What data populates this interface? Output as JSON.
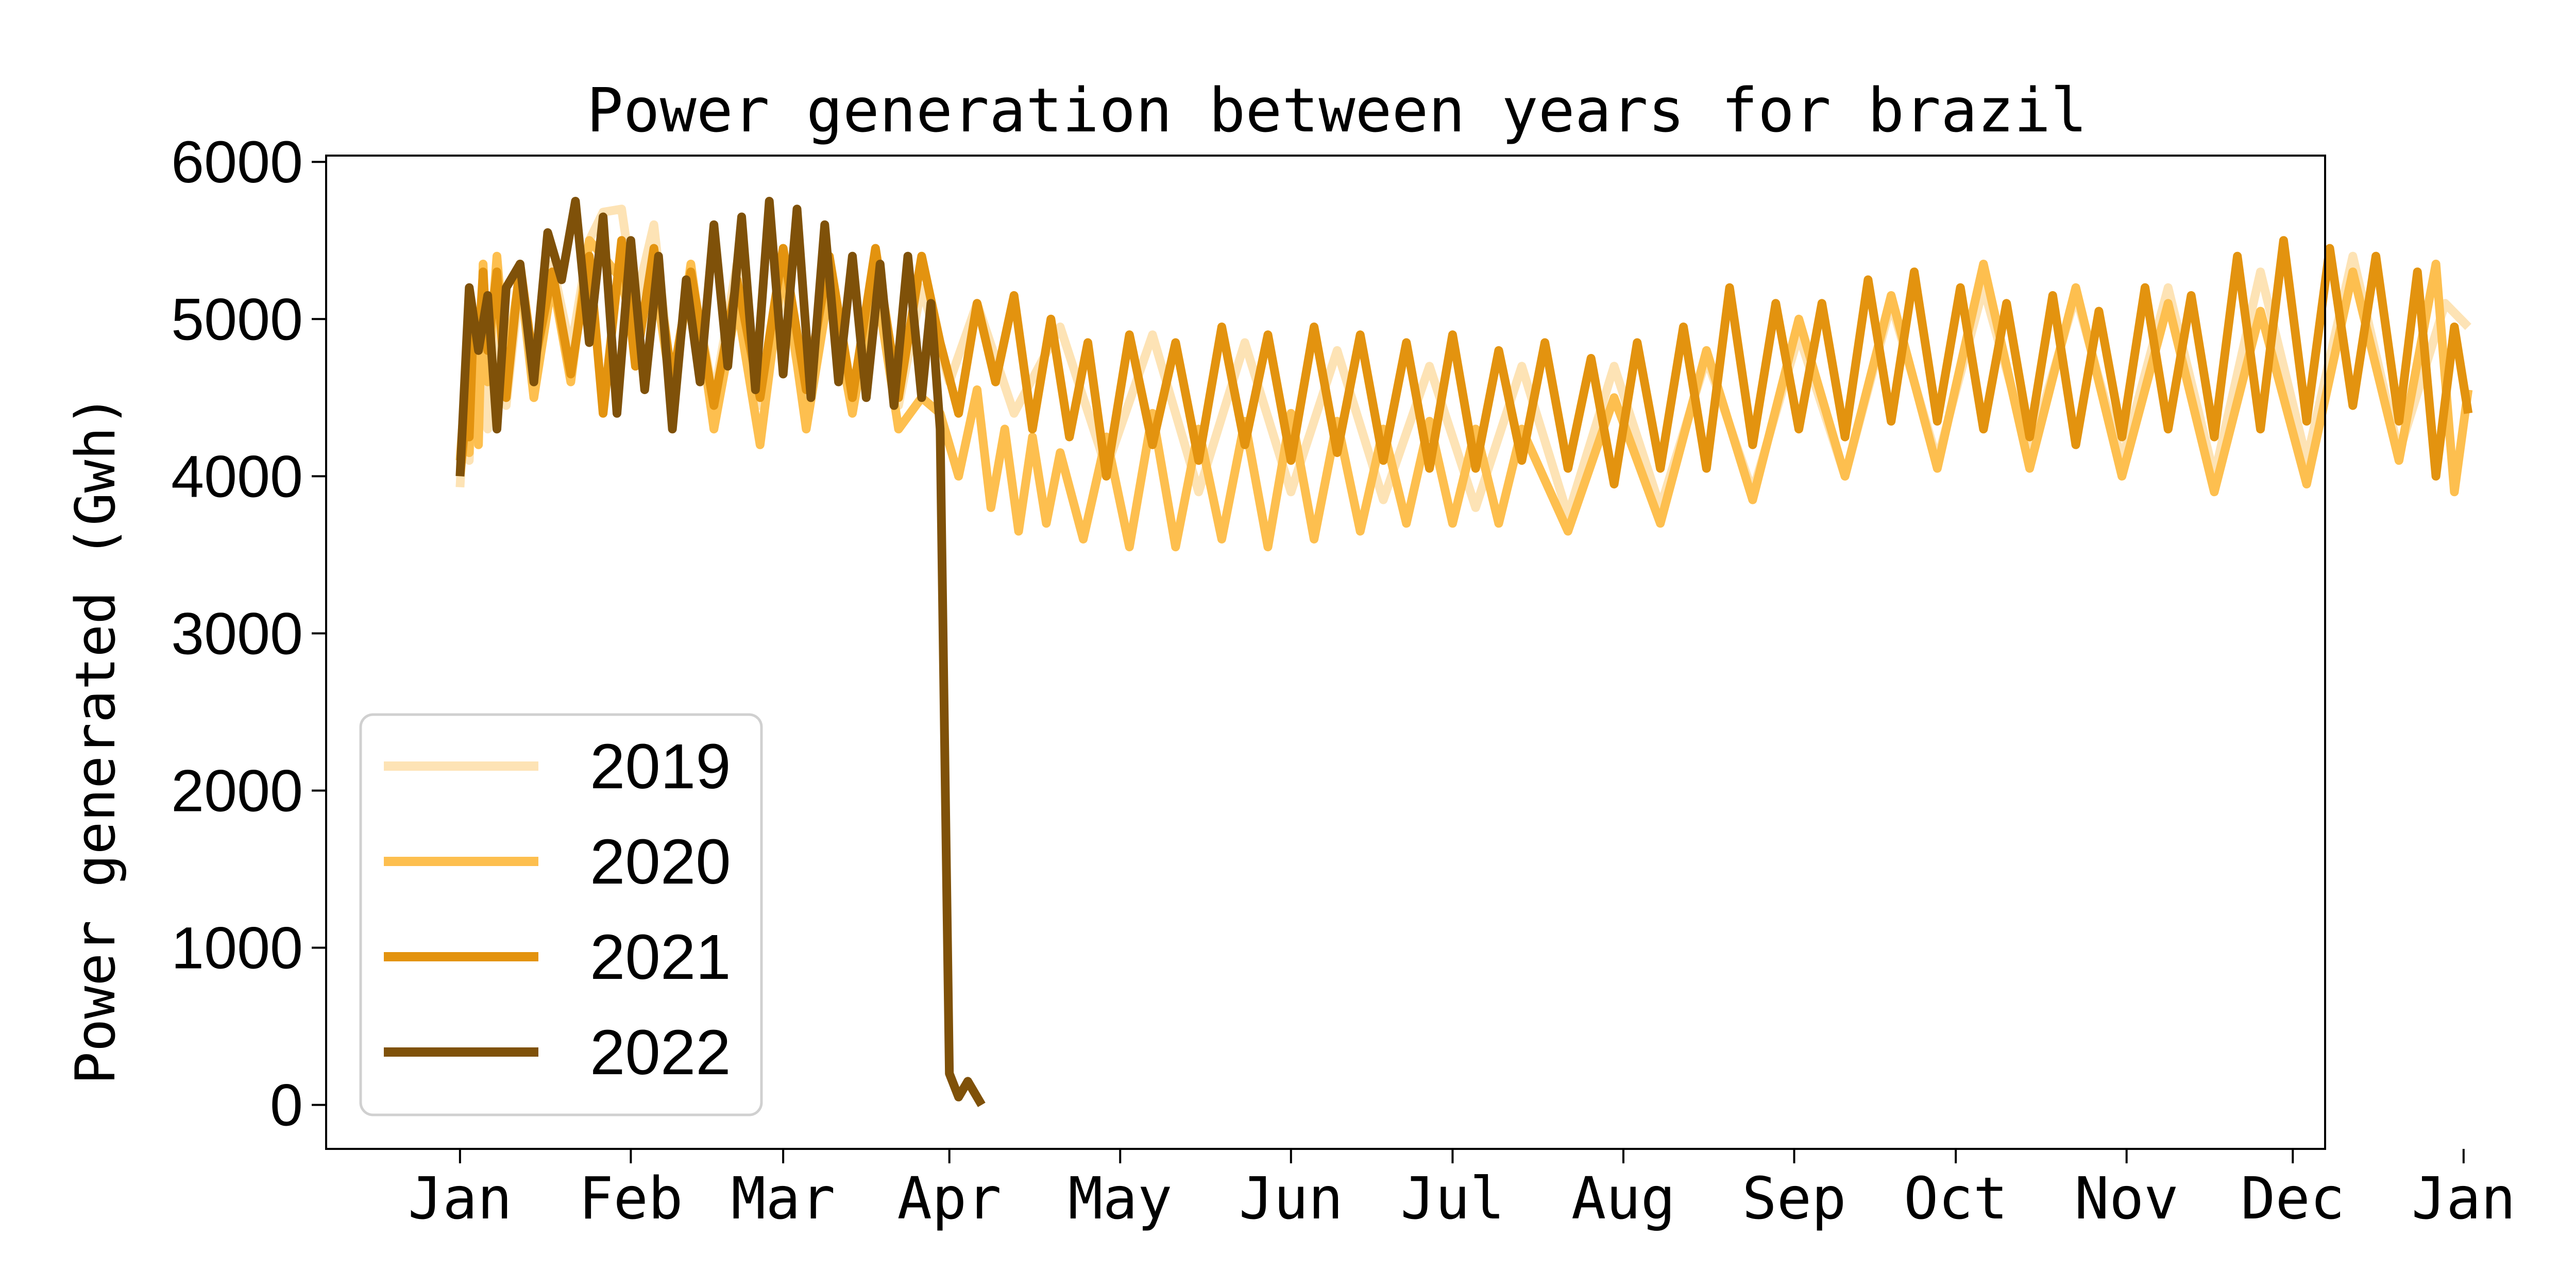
{
  "chart_data": {
    "type": "line",
    "title": "Power generation between years for brazil",
    "xlabel": "",
    "ylabel": "Power generated (Gwh)",
    "ylim": [
      -280,
      6040
    ],
    "yticks": [
      0,
      1000,
      2000,
      3000,
      4000,
      5000,
      6000
    ],
    "x_axis": {
      "unit": "day of year",
      "range": [
        -29,
        404
      ],
      "month_ticks": [
        {
          "label": "Jan",
          "day": 0
        },
        {
          "label": "Feb",
          "day": 37
        },
        {
          "label": "Mar",
          "day": 70
        },
        {
          "label": "Apr",
          "day": 106
        },
        {
          "label": "May",
          "day": 143
        },
        {
          "label": "Jun",
          "day": 180
        },
        {
          "label": "Jul",
          "day": 215
        },
        {
          "label": "Aug",
          "day": 252
        },
        {
          "label": "Sep",
          "day": 289
        },
        {
          "label": "Oct",
          "day": 324
        },
        {
          "label": "Nov",
          "day": 361
        },
        {
          "label": "Dec",
          "day": 397
        },
        {
          "label": "Jan",
          "day": 434
        }
      ]
    },
    "grid": false,
    "legend_position": "lower-left",
    "series": [
      {
        "name": "2019",
        "color": "#fde3b5",
        "days": [
          0,
          1,
          2,
          3,
          4,
          5,
          6,
          8,
          10,
          13,
          16,
          20,
          24,
          28,
          31,
          35,
          38,
          42,
          46,
          50,
          55,
          60,
          65,
          70,
          75,
          80,
          85,
          90,
          95,
          100,
          106,
          112,
          120,
          130,
          140,
          150,
          160,
          170,
          180,
          190,
          200,
          210,
          220,
          230,
          240,
          250,
          260,
          270,
          280,
          290,
          300,
          310,
          320,
          330,
          340,
          350,
          360,
          370,
          380,
          390,
          400,
          410,
          420,
          430,
          435
        ],
        "values": [
          3930,
          4450,
          4100,
          4800,
          4500,
          5200,
          4300,
          5100,
          4450,
          5250,
          4500,
          5350,
          4800,
          5500,
          5680,
          5700,
          5100,
          5600,
          4550,
          5300,
          4500,
          5350,
          4450,
          5200,
          4400,
          5350,
          4500,
          5250,
          4450,
          5200,
          4600,
          5100,
          4400,
          4950,
          4050,
          4900,
          3900,
          4850,
          3900,
          4800,
          3850,
          4700,
          3800,
          4700,
          3750,
          4700,
          3800,
          4750,
          3900,
          4900,
          4000,
          5100,
          4100,
          5200,
          4150,
          5150,
          4100,
          5200,
          4000,
          5300,
          4100,
          5400,
          4150,
          5100,
          4950
        ]
      },
      {
        "name": "2020",
        "color": "#fdbf4f",
        "days": [
          0,
          1,
          2,
          3,
          4,
          5,
          6,
          8,
          10,
          13,
          16,
          20,
          24,
          28,
          31,
          35,
          38,
          42,
          46,
          50,
          55,
          60,
          65,
          70,
          75,
          80,
          85,
          90,
          95,
          100,
          104,
          108,
          112,
          115,
          118,
          121,
          124,
          127,
          130,
          135,
          140,
          145,
          150,
          155,
          160,
          165,
          170,
          175,
          180,
          185,
          190,
          195,
          200,
          205,
          210,
          215,
          220,
          225,
          230,
          240,
          250,
          260,
          270,
          280,
          290,
          300,
          310,
          320,
          330,
          340,
          350,
          360,
          370,
          380,
          390,
          400,
          410,
          420,
          428,
          432,
          435
        ],
        "values": [
          4100,
          4500,
          4150,
          5000,
          4200,
          5350,
          4600,
          5400,
          4700,
          5300,
          4500,
          5250,
          4600,
          5500,
          5400,
          5250,
          4850,
          5300,
          4500,
          5350,
          4300,
          5100,
          4200,
          5350,
          4300,
          5200,
          4400,
          5250,
          4300,
          4500,
          4400,
          4000,
          4550,
          3800,
          4300,
          3650,
          4250,
          3700,
          4150,
          3600,
          4250,
          3550,
          4400,
          3550,
          4300,
          3600,
          4350,
          3550,
          4400,
          3600,
          4350,
          3650,
          4300,
          3700,
          4350,
          3700,
          4300,
          3700,
          4300,
          3650,
          4500,
          3700,
          4800,
          3850,
          5000,
          4000,
          5150,
          4050,
          5350,
          4050,
          5200,
          4000,
          5100,
          3900,
          5050,
          3950,
          5300,
          4100,
          5350,
          3900,
          4550
        ]
      },
      {
        "name": "2021",
        "color": "#e3930f",
        "days": [
          0,
          1,
          2,
          3,
          4,
          5,
          6,
          8,
          10,
          13,
          16,
          20,
          24,
          28,
          31,
          35,
          38,
          42,
          46,
          50,
          55,
          60,
          65,
          70,
          75,
          80,
          85,
          90,
          95,
          100,
          104,
          108,
          112,
          116,
          120,
          124,
          128,
          132,
          136,
          140,
          145,
          150,
          155,
          160,
          165,
          170,
          175,
          180,
          185,
          190,
          195,
          200,
          205,
          210,
          215,
          220,
          225,
          230,
          235,
          240,
          245,
          250,
          255,
          260,
          265,
          270,
          275,
          280,
          285,
          290,
          295,
          300,
          305,
          310,
          315,
          320,
          325,
          330,
          335,
          340,
          345,
          350,
          355,
          360,
          365,
          370,
          375,
          380,
          385,
          390,
          395,
          400,
          405,
          410,
          415,
          420,
          424,
          428,
          432,
          435
        ],
        "values": [
          4000,
          4300,
          4250,
          5050,
          4800,
          5300,
          4800,
          5300,
          4500,
          5350,
          4700,
          5300,
          4650,
          5400,
          4400,
          5500,
          4700,
          5450,
          4600,
          5300,
          4450,
          5250,
          4500,
          5450,
          4550,
          5400,
          4500,
          5450,
          4500,
          5400,
          4850,
          4400,
          5100,
          4600,
          5150,
          4300,
          5000,
          4250,
          4850,
          4000,
          4900,
          4200,
          4850,
          4100,
          4950,
          4200,
          4900,
          4100,
          4950,
          4150,
          4900,
          4100,
          4850,
          4050,
          4900,
          4050,
          4800,
          4100,
          4850,
          4050,
          4750,
          3950,
          4850,
          4050,
          4950,
          4050,
          5200,
          4200,
          5100,
          4300,
          5100,
          4250,
          5250,
          4350,
          5300,
          4350,
          5200,
          4300,
          5100,
          4250,
          5150,
          4200,
          5050,
          4250,
          5200,
          4300,
          5150,
          4250,
          5400,
          4300,
          5500,
          4350,
          5450,
          4450,
          5400,
          4350,
          5300,
          4000,
          4950,
          4400
        ]
      },
      {
        "name": "2022",
        "color": "#7f5109",
        "days": [
          0,
          2,
          4,
          6,
          8,
          10,
          13,
          16,
          19,
          22,
          25,
          28,
          31,
          34,
          37,
          40,
          43,
          46,
          49,
          52,
          55,
          58,
          61,
          64,
          67,
          70,
          73,
          76,
          79,
          82,
          85,
          88,
          91,
          94,
          97,
          100,
          102,
          104,
          106,
          108,
          110,
          113
        ],
        "values": [
          4000,
          5200,
          4800,
          5150,
          4300,
          5200,
          5350,
          4600,
          5550,
          5250,
          5750,
          4850,
          5650,
          4400,
          5500,
          4550,
          5400,
          4300,
          5250,
          4600,
          5600,
          4700,
          5650,
          4550,
          5750,
          4650,
          5700,
          4500,
          5600,
          4600,
          5400,
          4500,
          5350,
          4450,
          5400,
          4500,
          5100,
          4300,
          200,
          50,
          150,
          0
        ]
      }
    ]
  }
}
